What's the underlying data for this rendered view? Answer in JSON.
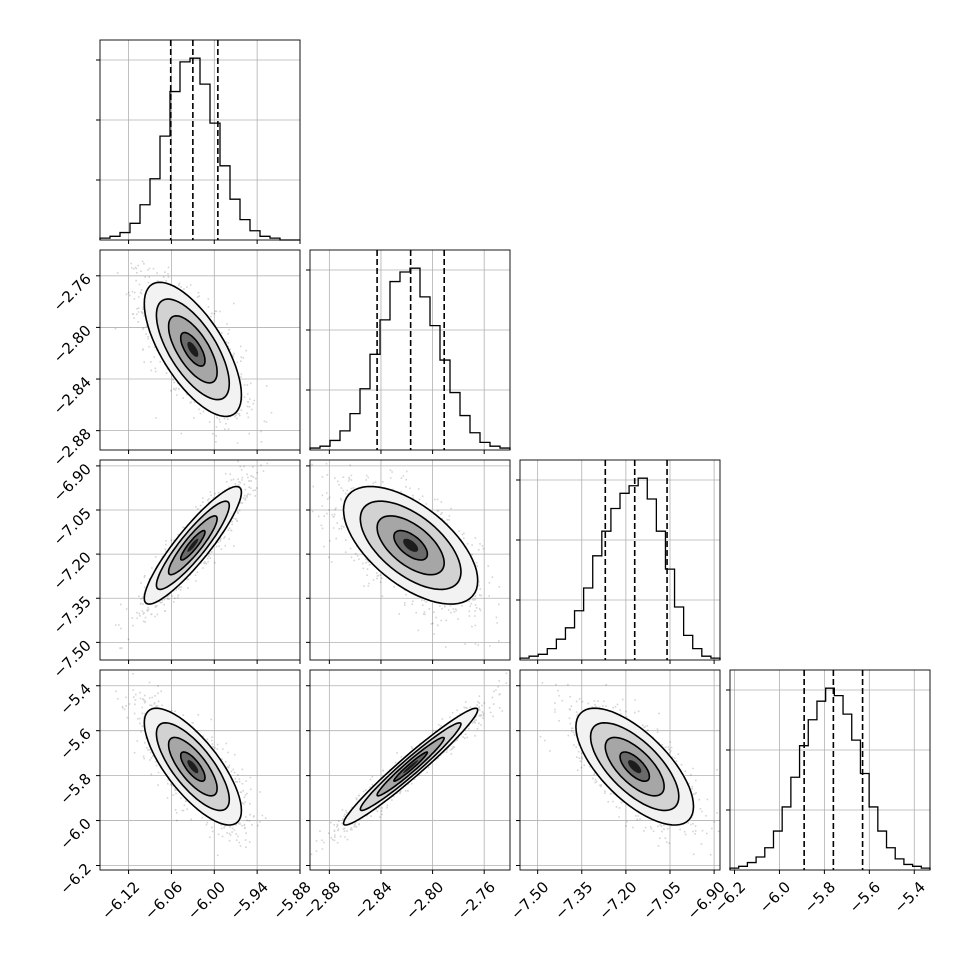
{
  "chart_data": {
    "type": "corner",
    "grid": true,
    "params": [
      {
        "range": [
          -6.16,
          -5.88
        ],
        "ticks": [
          -6.12,
          -6.06,
          -6.0,
          -5.94,
          -5.88
        ],
        "tick_labels": [
          "−6.12",
          "−6.06",
          "−6.00",
          "−5.94",
          "−5.88"
        ],
        "quantiles": [
          -6.061,
          -6.03,
          -5.995
        ],
        "mean": -6.03,
        "sd": 0.034
      },
      {
        "range": [
          -2.895,
          -2.74
        ],
        "ticks": [
          -2.88,
          -2.84,
          -2.8,
          -2.76
        ],
        "tick_labels": [
          "−2.88",
          "−2.84",
          "−2.80",
          "−2.76"
        ],
        "quantiles": [
          -2.843,
          -2.817,
          -2.791
        ],
        "mean": -2.817,
        "sd": 0.026
      },
      {
        "range": [
          -7.56,
          -6.88
        ],
        "ticks": [
          -7.5,
          -7.35,
          -7.2,
          -7.05,
          -6.9
        ],
        "tick_labels": [
          "−7.50",
          "−7.35",
          "−7.20",
          "−7.05",
          "−6.90"
        ],
        "quantiles": [
          -7.27,
          -7.17,
          -7.06
        ],
        "mean": -7.17,
        "sd": 0.1
      },
      {
        "range": [
          -6.22,
          -5.33
        ],
        "ticks": [
          -6.2,
          -6.0,
          -5.8,
          -5.6,
          -5.4
        ],
        "tick_labels": [
          "−6.2",
          "−6.0",
          "−5.8",
          "−5.6",
          "−5.4"
        ],
        "quantiles": [
          -5.89,
          -5.76,
          -5.63
        ],
        "mean": -5.76,
        "sd": 0.13
      }
    ],
    "histograms": [
      {
        "param": 0,
        "counts": [
          1,
          2,
          4,
          9,
          19,
          33,
          56,
          80,
          96,
          98,
          84,
          63,
          40,
          22,
          11,
          5,
          2,
          1,
          0,
          0
        ]
      },
      {
        "param": 1,
        "counts": [
          1,
          2,
          5,
          10,
          19,
          32,
          50,
          68,
          88,
          93,
          95,
          80,
          65,
          47,
          30,
          18,
          9,
          4,
          2,
          1
        ]
      },
      {
        "param": 2,
        "counts": [
          1,
          2,
          3,
          6,
          11,
          17,
          26,
          38,
          55,
          68,
          80,
          88,
          92,
          96,
          85,
          68,
          48,
          28,
          13,
          6,
          2,
          1
        ]
      },
      {
        "param": 3,
        "counts": [
          1,
          2,
          4,
          7,
          12,
          21,
          34,
          50,
          67,
          81,
          91,
          98,
          94,
          84,
          70,
          52,
          34,
          21,
          12,
          6,
          3,
          2,
          1
        ]
      }
    ],
    "pairs": [
      {
        "x_param": 0,
        "y_param": 1,
        "correlation": -0.68
      },
      {
        "x_param": 0,
        "y_param": 2,
        "correlation": 0.9
      },
      {
        "x_param": 1,
        "y_param": 2,
        "correlation": -0.6
      },
      {
        "x_param": 0,
        "y_param": 3,
        "correlation": -0.75
      },
      {
        "x_param": 1,
        "y_param": 3,
        "correlation": 0.97
      },
      {
        "x_param": 2,
        "y_param": 3,
        "correlation": -0.68
      }
    ],
    "contour_levels_sigma": [
      0.5,
      1.0,
      1.5,
      2.0
    ]
  }
}
